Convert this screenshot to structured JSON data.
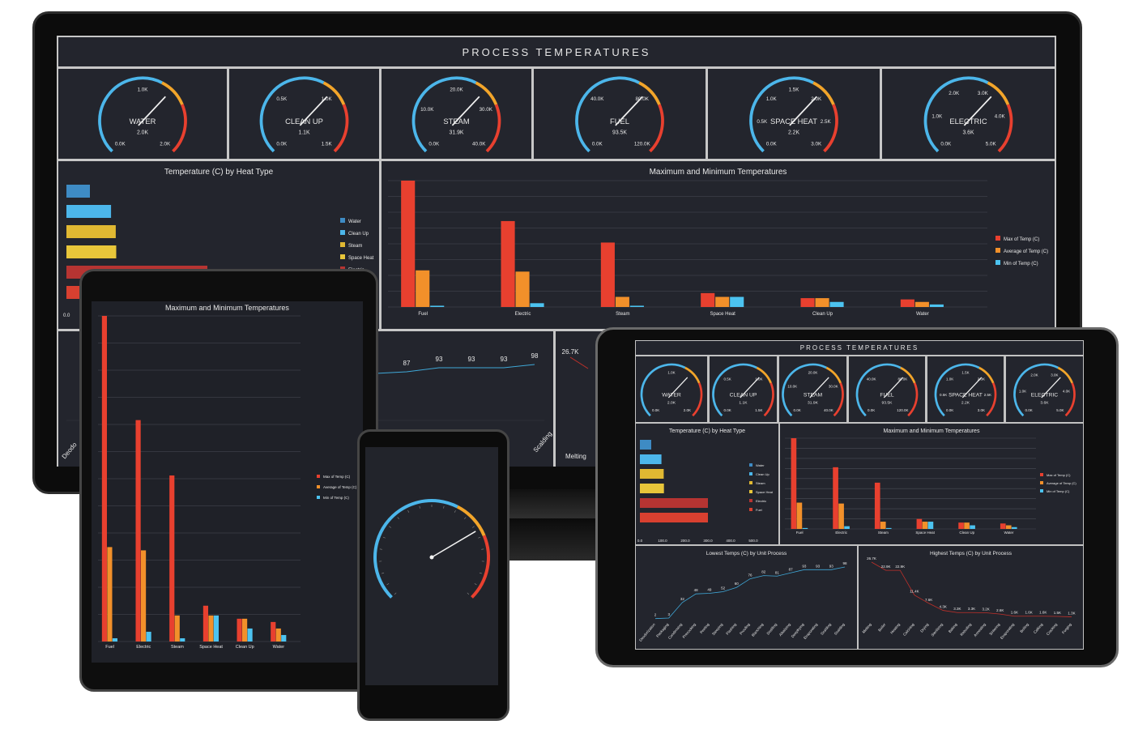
{
  "title": "PROCESS TEMPERATURES",
  "colors": {
    "max": "#e8402f",
    "avg": "#f2902a",
    "min": "#4cc3f0",
    "bg": "#1f2128",
    "panel": "#23252d"
  },
  "gauges": [
    {
      "name": "WATER",
      "value": "2.0K",
      "ticks": [
        "0.0K",
        "1.0K",
        "2.0K"
      ]
    },
    {
      "name": "CLEAN UP",
      "value": "1.1K",
      "ticks": [
        "0.0K",
        "0.5K",
        "1.0K",
        "1.5K"
      ]
    },
    {
      "name": "STEAM",
      "value": "31.9K",
      "ticks": [
        "0.0K",
        "10.0K",
        "20.0K",
        "30.0K",
        "40.0K"
      ]
    },
    {
      "name": "FUEL",
      "value": "93.5K",
      "ticks": [
        "0.0K",
        "40.0K",
        "80.0K",
        "120.0K"
      ]
    },
    {
      "name": "SPACE HEAT",
      "value": "2.2K",
      "ticks": [
        "0.0K",
        "0.5K",
        "1.0K",
        "1.5K",
        "2.0K",
        "2.5K",
        "3.0K"
      ]
    },
    {
      "name": "ELECTRIC",
      "value": "3.6K",
      "ticks": [
        "0.0K",
        "1.0K",
        "2.0K",
        "3.0K",
        "4.0K",
        "5.0K"
      ]
    }
  ],
  "chart_data": [
    {
      "type": "bar",
      "title": "Temperature (C) by Heat Type",
      "orientation": "horizontal",
      "categories": [
        "Water",
        "Clean Up",
        "Steam",
        "Space Heat",
        "Electric",
        "Fuel"
      ],
      "values": [
        50,
        95,
        105,
        106,
        300,
        300
      ],
      "colors": [
        "#3e8bc4",
        "#4cb6ea",
        "#e0b832",
        "#e8c63a",
        "#b63432",
        "#d84030"
      ],
      "tick_labels": [
        "0.0",
        "100.0",
        "200.0",
        "300.0",
        "400.0",
        "500.0"
      ],
      "xlim": [
        0,
        500
      ]
    },
    {
      "type": "bar",
      "title": "Maximum and Minimum Temperatures",
      "categories": [
        "Fuel",
        "Electric",
        "Steam",
        "Space Heat",
        "Clean Up",
        "Water"
      ],
      "series": [
        {
          "name": "Max of Temp (C)",
          "values": [
            100,
            68,
            51,
            11,
            7,
            6
          ]
        },
        {
          "name": "Average of Temp (C)",
          "values": [
            29,
            28,
            8,
            8,
            7,
            4
          ]
        },
        {
          "name": "Min of Temp (C)",
          "values": [
            1,
            3,
            1,
            8,
            4,
            2
          ]
        }
      ],
      "ylim": [
        0,
        100
      ]
    },
    {
      "type": "line",
      "title": "Lowest Temps (C) by Unit Process",
      "categories": [
        "Deodorization",
        "Packaging",
        "Condensing",
        "Precooking",
        "Peeling",
        "Steeping",
        "Flashing",
        "Proofing",
        "Blanching",
        "Distilling",
        "Alkalizing",
        "Deepfrying",
        "Evaporating",
        "Scalding",
        "Scalding"
      ],
      "values": [
        2,
        3,
        32,
        48,
        49,
        52,
        60,
        76,
        82,
        81,
        87,
        93,
        93,
        93,
        98
      ],
      "labels": [
        "2",
        "3",
        "32",
        "48",
        "49",
        "52",
        "60",
        "76",
        "82",
        "81",
        "87",
        "93",
        "93",
        "93",
        "98"
      ]
    },
    {
      "type": "line",
      "title": "Highest Temps (C) by Unit Process",
      "categories": [
        "Melting",
        "Boiler",
        "Heating",
        "Calcining",
        "Drying",
        "Sterilizing",
        "Baking",
        "Reboiling",
        "Annealing",
        "Sintering",
        "Evaporating",
        "Boiling",
        "Calking",
        "Cracking",
        "Forging"
      ],
      "values": [
        26.7,
        22.9,
        22.9,
        11.4,
        7.6,
        4.3,
        3.3,
        3.3,
        3.2,
        2.6,
        1.6,
        1.6,
        1.6,
        1.5,
        1.3
      ],
      "labels": [
        "26.7K",
        "22.9K",
        "22.9K",
        "11.4K",
        "7.6K",
        "4.3K",
        "3.3K",
        "3.3K",
        "3.2K",
        "2.6K",
        "1.6K",
        "1.6K",
        "1.6K",
        "1.5K",
        "1.3K"
      ]
    }
  ],
  "monitor_line_labels": [
    "5",
    "87",
    "93",
    "93",
    "93",
    "98"
  ],
  "monitor_fragments": {
    "left_value": "26.7K",
    "bottom_left": "Deodo",
    "bottom_mid": "Scalding",
    "bottom_right": "Melting",
    "h_axis_zero": "0.0"
  },
  "phone_gauge": {
    "value_fraction": 0.72
  }
}
